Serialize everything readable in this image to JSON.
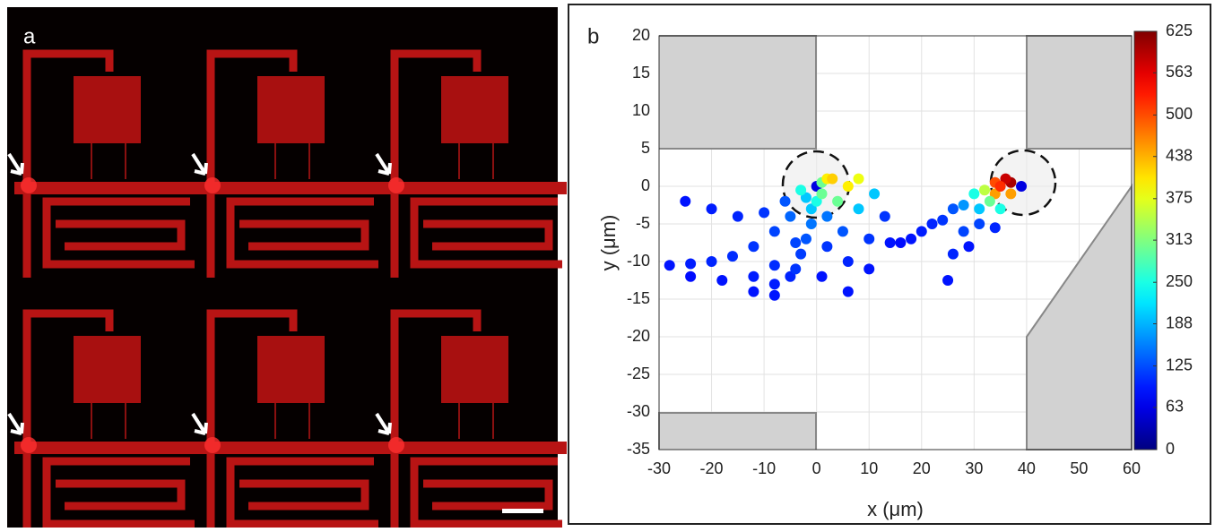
{
  "panel_a": {
    "label": "a"
  },
  "chart_data": {
    "type": "scatter",
    "panel_label": "b",
    "xlabel": "x (μm)",
    "ylabel": "y (μm)",
    "xlim": [
      -30,
      60
    ],
    "xticks": [
      -30,
      -20,
      -10,
      0,
      10,
      20,
      30,
      40,
      50,
      60
    ],
    "ylim": [
      -35,
      20
    ],
    "yticks": [
      -35,
      -30,
      -25,
      -20,
      -15,
      -10,
      -5,
      0,
      5,
      10,
      15,
      20
    ],
    "grid": true,
    "colormap": "jet",
    "clim": [
      0,
      625
    ],
    "cticks": [
      0,
      63,
      125,
      188,
      250,
      313,
      375,
      438,
      500,
      563,
      625
    ],
    "x": [
      -28,
      -24,
      -20,
      -16,
      -12,
      -8,
      -5,
      -2,
      0,
      -24,
      -18,
      -12,
      -8,
      -4,
      -1,
      1,
      -25,
      -20,
      -15,
      -10,
      -6,
      -3,
      2,
      -8,
      -5,
      -3,
      -1,
      0,
      6,
      6,
      5,
      4,
      3,
      10,
      10,
      8,
      6,
      14,
      13,
      11,
      8,
      1,
      2,
      2,
      1,
      -12,
      -8,
      -4,
      -2,
      25,
      26,
      28,
      31,
      34,
      37,
      18,
      22,
      26,
      30,
      34,
      16,
      20,
      24,
      28,
      32,
      36,
      29,
      31,
      33,
      35,
      34,
      35,
      37,
      39
    ],
    "y": [
      -10.5,
      -10.3,
      -10,
      -9.3,
      -8,
      -6,
      -4,
      -1.5,
      0,
      -12,
      -12.5,
      -12,
      -10.5,
      -7.5,
      -3,
      0.5,
      -2,
      -3,
      -4,
      -3.5,
      -2,
      -0.5,
      1,
      -14.5,
      -12,
      -9,
      -5,
      -2,
      -14,
      -10,
      -6,
      -2,
      1,
      -11,
      -7,
      -3,
      0,
      -7.5,
      -4,
      -1,
      1,
      -12,
      -8,
      -4,
      -1,
      -14,
      -13,
      -11,
      -7,
      -12.5,
      -9,
      -6,
      -3,
      -1,
      0.5,
      -7,
      -5,
      -3,
      -1,
      0.5,
      -7.5,
      -6,
      -4.5,
      -2.5,
      -0.5,
      1,
      -8,
      -5,
      -2,
      0,
      -5.5,
      -3,
      -1,
      0
    ],
    "c": [
      90,
      95,
      100,
      105,
      110,
      120,
      140,
      200,
      60,
      85,
      90,
      95,
      105,
      120,
      200,
      300,
      90,
      95,
      100,
      110,
      130,
      250,
      400,
      90,
      100,
      115,
      150,
      250,
      90,
      100,
      130,
      300,
      420,
      90,
      110,
      200,
      400,
      90,
      110,
      200,
      380,
      90,
      110,
      150,
      300,
      90,
      95,
      110,
      130,
      90,
      100,
      120,
      200,
      450,
      600,
      90,
      100,
      130,
      250,
      500,
      85,
      95,
      110,
      170,
      350,
      580,
      90,
      120,
      300,
      520,
      100,
      250,
      450,
      60
    ]
  }
}
